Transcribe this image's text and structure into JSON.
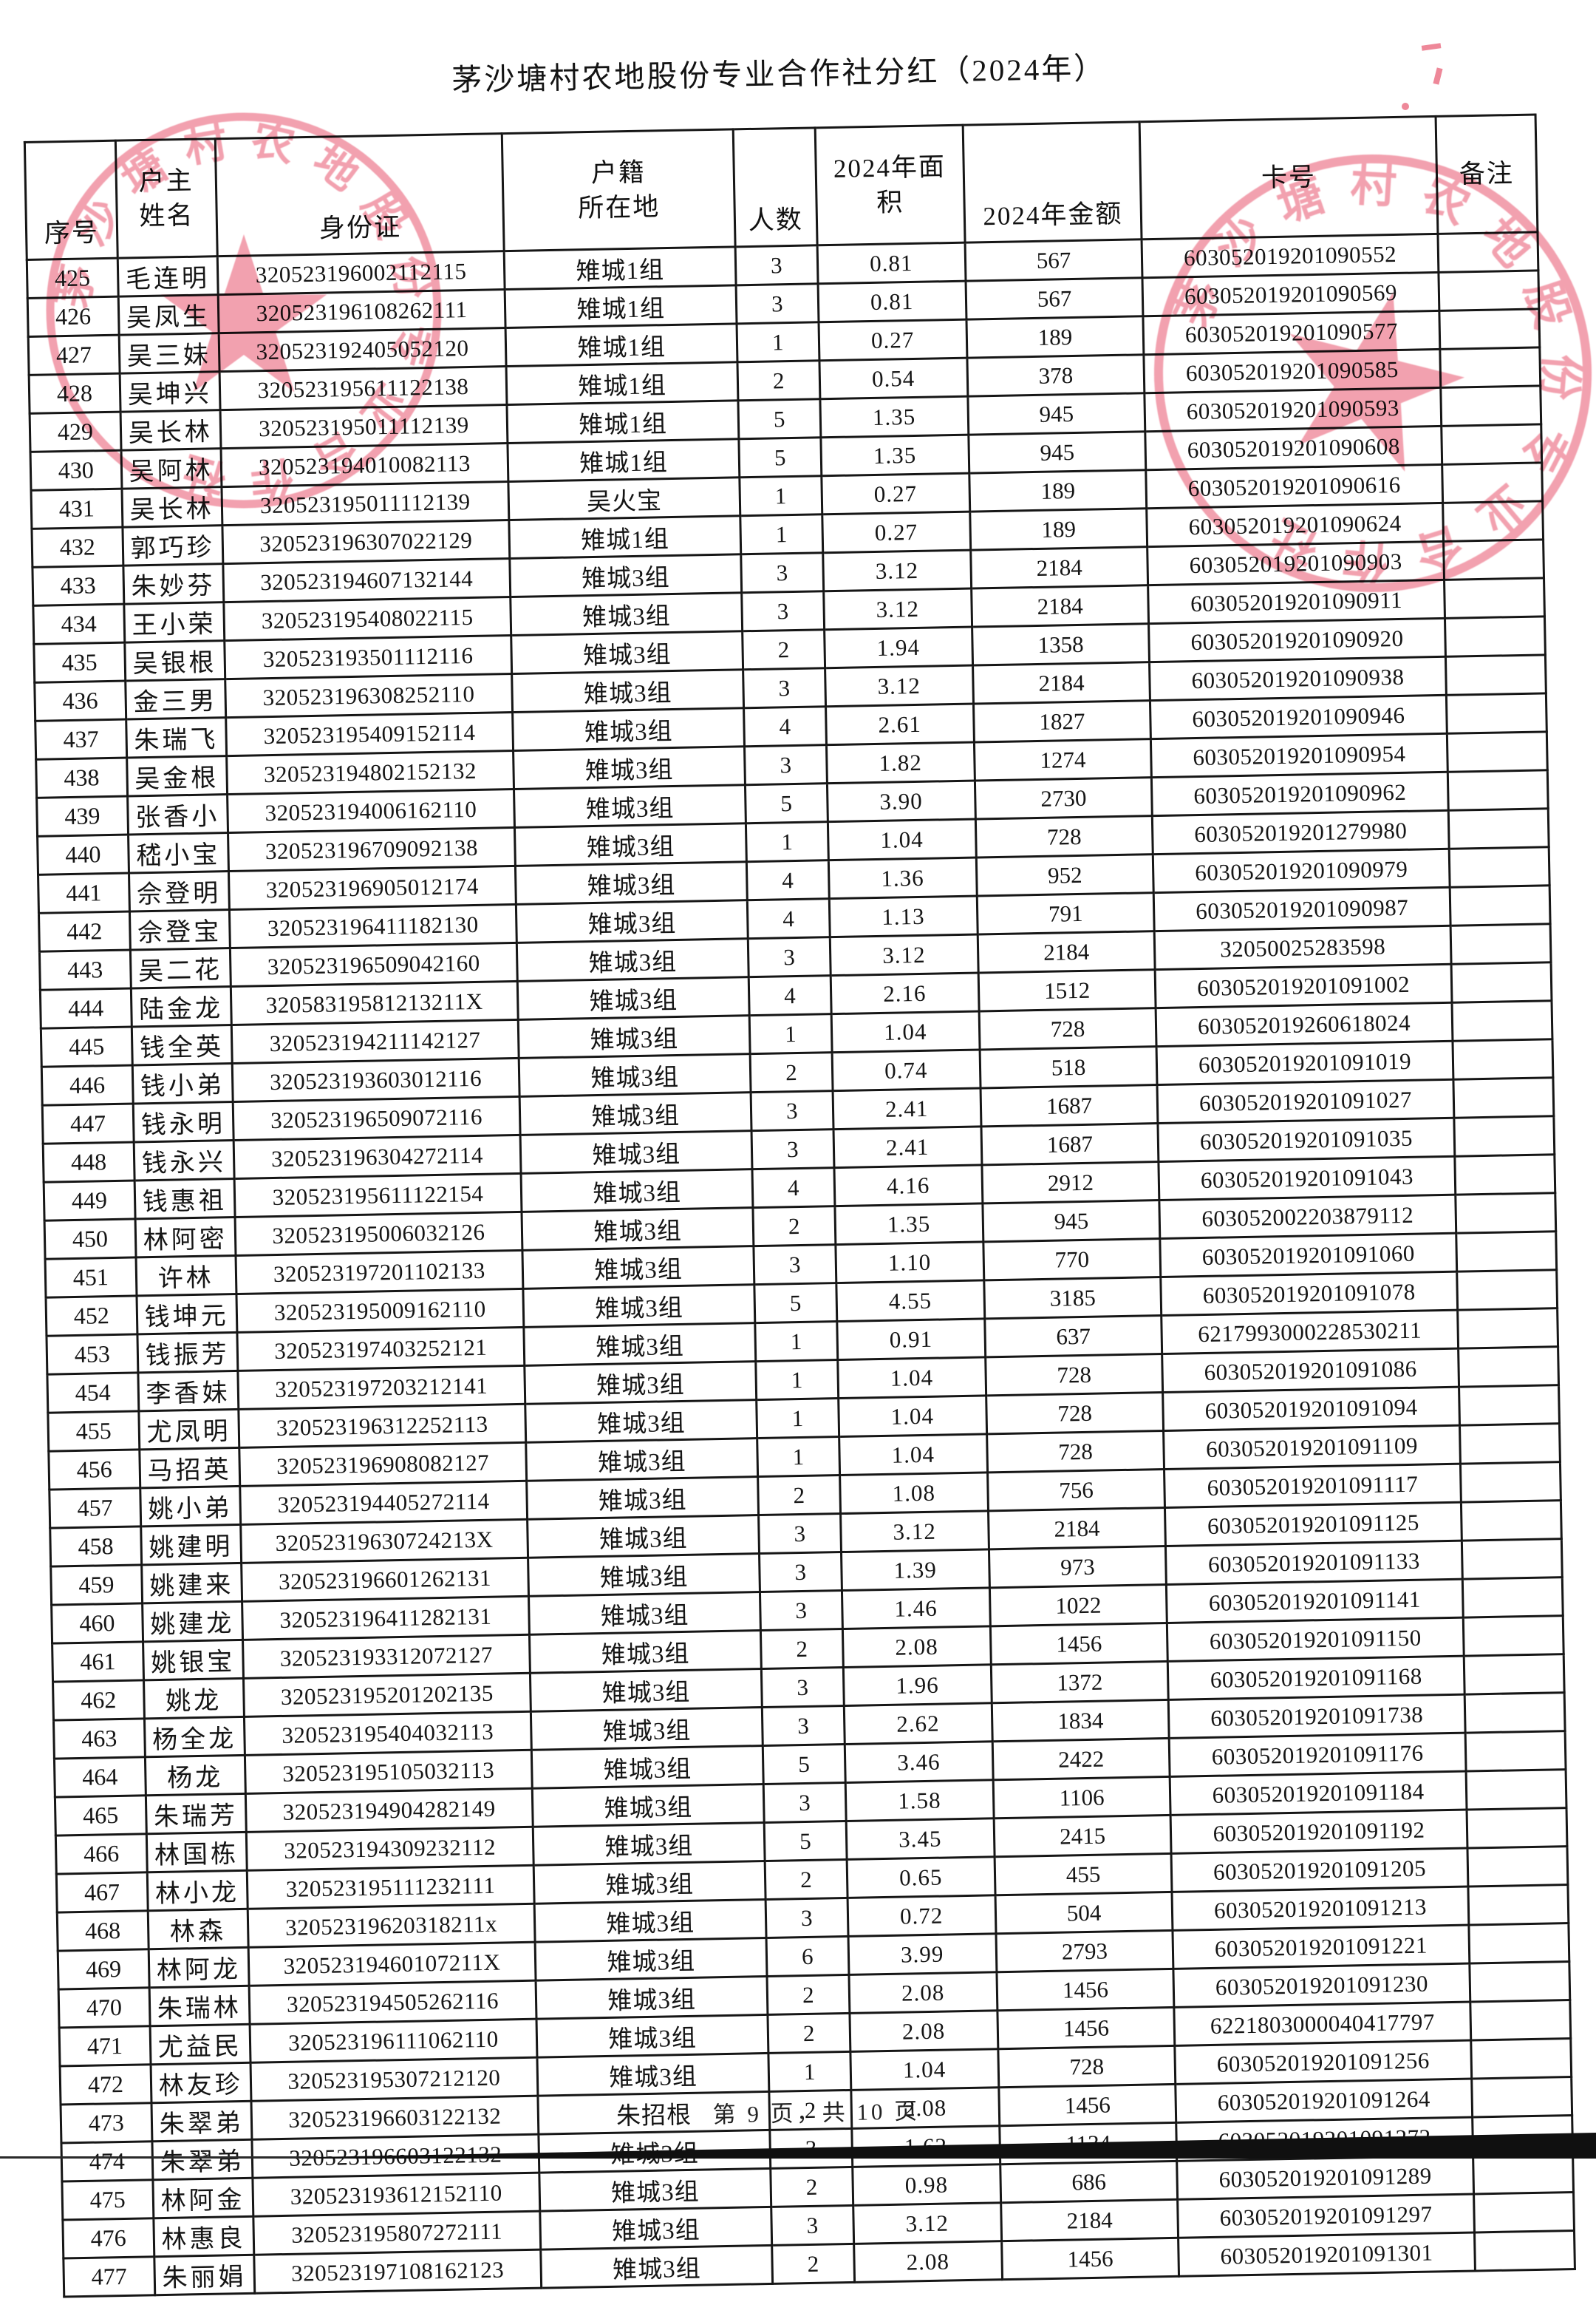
{
  "page": {
    "title": "茅沙塘村农地股份专业合作社分红（2024年）",
    "footer": "第 9 页，共 10 页"
  },
  "stamps": {
    "seal_text": "茅沙塘村农地股份专业合作社",
    "color": "#e8566f"
  },
  "table": {
    "headers": [
      [
        "序号"
      ],
      [
        "户主",
        "姓名"
      ],
      [
        "身份证"
      ],
      [
        "户籍",
        "所在地"
      ],
      [
        "人数"
      ],
      [
        "2024年面",
        "积"
      ],
      [
        "2024年金额"
      ],
      [
        "卡号"
      ],
      [
        "备注"
      ]
    ],
    "col_names": [
      "cell-index",
      "cell-owner-name",
      "cell-id-number",
      "cell-residence",
      "cell-people-count",
      "cell-area-2024",
      "cell-amount-2024",
      "cell-card-number",
      "cell-note"
    ],
    "rows": [
      [
        "425",
        "毛连明",
        "320523196002112115",
        "雉城1组",
        "3",
        "0.81",
        "567",
        "603052019201090552",
        ""
      ],
      [
        "426",
        "吴凤生",
        "320523196108262111",
        "雉城1组",
        "3",
        "0.81",
        "567",
        "603052019201090569",
        ""
      ],
      [
        "427",
        "吴三妹",
        "320523192405052120",
        "雉城1组",
        "1",
        "0.27",
        "189",
        "603052019201090577",
        ""
      ],
      [
        "428",
        "吴坤兴",
        "320523195611122138",
        "雉城1组",
        "2",
        "0.54",
        "378",
        "603052019201090585",
        ""
      ],
      [
        "429",
        "吴长林",
        "320523195011112139",
        "雉城1组",
        "5",
        "1.35",
        "945",
        "603052019201090593",
        ""
      ],
      [
        "430",
        "吴阿林",
        "320523194010082113",
        "雉城1组",
        "5",
        "1.35",
        "945",
        "603052019201090608",
        ""
      ],
      [
        "431",
        "吴长林",
        "320523195011112139",
        "吴火宝",
        "1",
        "0.27",
        "189",
        "603052019201090616",
        ""
      ],
      [
        "432",
        "郭巧珍",
        "320523196307022129",
        "雉城1组",
        "1",
        "0.27",
        "189",
        "603052019201090624",
        ""
      ],
      [
        "433",
        "朱妙芬",
        "320523194607132144",
        "雉城3组",
        "3",
        "3.12",
        "2184",
        "603052019201090903",
        ""
      ],
      [
        "434",
        "王小荣",
        "320523195408022115",
        "雉城3组",
        "3",
        "3.12",
        "2184",
        "603052019201090911",
        ""
      ],
      [
        "435",
        "吴银根",
        "320523193501112116",
        "雉城3组",
        "2",
        "1.94",
        "1358",
        "603052019201090920",
        ""
      ],
      [
        "436",
        "金三男",
        "320523196308252110",
        "雉城3组",
        "3",
        "3.12",
        "2184",
        "603052019201090938",
        ""
      ],
      [
        "437",
        "朱瑞飞",
        "320523195409152114",
        "雉城3组",
        "4",
        "2.61",
        "1827",
        "603052019201090946",
        ""
      ],
      [
        "438",
        "吴金根",
        "320523194802152132",
        "雉城3组",
        "3",
        "1.82",
        "1274",
        "603052019201090954",
        ""
      ],
      [
        "439",
        "张香小",
        "320523194006162110",
        "雉城3组",
        "5",
        "3.90",
        "2730",
        "603052019201090962",
        ""
      ],
      [
        "440",
        "嵇小宝",
        "320523196709092138",
        "雉城3组",
        "1",
        "1.04",
        "728",
        "603052019201279980",
        ""
      ],
      [
        "441",
        "佘登明",
        "320523196905012174",
        "雉城3组",
        "4",
        "1.36",
        "952",
        "603052019201090979",
        ""
      ],
      [
        "442",
        "佘登宝",
        "320523196411182130",
        "雉城3组",
        "4",
        "1.13",
        "791",
        "603052019201090987",
        ""
      ],
      [
        "443",
        "吴二花",
        "320523196509042160",
        "雉城3组",
        "3",
        "3.12",
        "2184",
        "32050025283598",
        ""
      ],
      [
        "444",
        "陆金龙",
        "32058319581213211X",
        "雉城3组",
        "4",
        "2.16",
        "1512",
        "603052019201091002",
        ""
      ],
      [
        "445",
        "钱全英",
        "320523194211142127",
        "雉城3组",
        "1",
        "1.04",
        "728",
        "603052019260618024",
        ""
      ],
      [
        "446",
        "钱小弟",
        "320523193603012116",
        "雉城3组",
        "2",
        "0.74",
        "518",
        "603052019201091019",
        ""
      ],
      [
        "447",
        "钱永明",
        "320523196509072116",
        "雉城3组",
        "3",
        "2.41",
        "1687",
        "603052019201091027",
        ""
      ],
      [
        "448",
        "钱永兴",
        "320523196304272114",
        "雉城3组",
        "3",
        "2.41",
        "1687",
        "603052019201091035",
        ""
      ],
      [
        "449",
        "钱惠祖",
        "320523195611122154",
        "雉城3组",
        "4",
        "4.16",
        "2912",
        "603052019201091043",
        ""
      ],
      [
        "450",
        "林阿密",
        "320523195006032126",
        "雉城3组",
        "2",
        "1.35",
        "945",
        "603052002203879112",
        ""
      ],
      [
        "451",
        "许林",
        "320523197201102133",
        "雉城3组",
        "3",
        "1.10",
        "770",
        "603052019201091060",
        ""
      ],
      [
        "452",
        "钱坤元",
        "320523195009162110",
        "雉城3组",
        "5",
        "4.55",
        "3185",
        "603052019201091078",
        ""
      ],
      [
        "453",
        "钱振芳",
        "320523197403252121",
        "雉城3组",
        "1",
        "0.91",
        "637",
        "6217993000228530211",
        ""
      ],
      [
        "454",
        "李香妹",
        "320523197203212141",
        "雉城3组",
        "1",
        "1.04",
        "728",
        "603052019201091086",
        ""
      ],
      [
        "455",
        "尤凤明",
        "320523196312252113",
        "雉城3组",
        "1",
        "1.04",
        "728",
        "603052019201091094",
        ""
      ],
      [
        "456",
        "马招英",
        "320523196908082127",
        "雉城3组",
        "1",
        "1.04",
        "728",
        "603052019201091109",
        ""
      ],
      [
        "457",
        "姚小弟",
        "320523194405272114",
        "雉城3组",
        "2",
        "1.08",
        "756",
        "603052019201091117",
        ""
      ],
      [
        "458",
        "姚建明",
        "32052319630724213X",
        "雉城3组",
        "3",
        "3.12",
        "2184",
        "603052019201091125",
        ""
      ],
      [
        "459",
        "姚建来",
        "320523196601262131",
        "雉城3组",
        "3",
        "1.39",
        "973",
        "603052019201091133",
        ""
      ],
      [
        "460",
        "姚建龙",
        "320523196411282131",
        "雉城3组",
        "3",
        "1.46",
        "1022",
        "603052019201091141",
        ""
      ],
      [
        "461",
        "姚银宝",
        "320523193312072127",
        "雉城3组",
        "2",
        "2.08",
        "1456",
        "603052019201091150",
        ""
      ],
      [
        "462",
        "姚龙",
        "320523195201202135",
        "雉城3组",
        "3",
        "1.96",
        "1372",
        "603052019201091168",
        ""
      ],
      [
        "463",
        "杨全龙",
        "320523195404032113",
        "雉城3组",
        "3",
        "2.62",
        "1834",
        "603052019201091738",
        ""
      ],
      [
        "464",
        "杨龙",
        "320523195105032113",
        "雉城3组",
        "5",
        "3.46",
        "2422",
        "603052019201091176",
        ""
      ],
      [
        "465",
        "朱瑞芳",
        "320523194904282149",
        "雉城3组",
        "3",
        "1.58",
        "1106",
        "603052019201091184",
        ""
      ],
      [
        "466",
        "林国栋",
        "320523194309232112",
        "雉城3组",
        "5",
        "3.45",
        "2415",
        "603052019201091192",
        ""
      ],
      [
        "467",
        "林小龙",
        "320523195111232111",
        "雉城3组",
        "2",
        "0.65",
        "455",
        "603052019201091205",
        ""
      ],
      [
        "468",
        "林森",
        "32052319620318211x",
        "雉城3组",
        "3",
        "0.72",
        "504",
        "603052019201091213",
        ""
      ],
      [
        "469",
        "林阿龙",
        "32052319460107211X",
        "雉城3组",
        "6",
        "3.99",
        "2793",
        "603052019201091221",
        ""
      ],
      [
        "470",
        "朱瑞林",
        "320523194505262116",
        "雉城3组",
        "2",
        "2.08",
        "1456",
        "603052019201091230",
        ""
      ],
      [
        "471",
        "尤益民",
        "320523196111062110",
        "雉城3组",
        "2",
        "2.08",
        "1456",
        "6221803000040417797",
        ""
      ],
      [
        "472",
        "林友珍",
        "320523195307212120",
        "雉城3组",
        "1",
        "1.04",
        "728",
        "603052019201091256",
        ""
      ],
      [
        "473",
        "朱翠弟",
        "320523196603122132",
        "朱招根",
        "2",
        "2.08",
        "1456",
        "603052019201091264",
        ""
      ],
      [
        "474",
        "朱翠弟",
        "320523196603122132",
        "雉城3组",
        "3",
        "1.62",
        "1134",
        "603052019201091272",
        ""
      ],
      [
        "475",
        "林阿金",
        "320523193612152110",
        "雉城3组",
        "2",
        "0.98",
        "686",
        "603052019201091289",
        ""
      ],
      [
        "476",
        "林惠良",
        "320523195807272111",
        "雉城3组",
        "3",
        "3.12",
        "2184",
        "603052019201091297",
        ""
      ],
      [
        "477",
        "朱丽娟",
        "320523197108162123",
        "雉城3组",
        "2",
        "2.08",
        "1456",
        "603052019201091301",
        ""
      ]
    ]
  }
}
